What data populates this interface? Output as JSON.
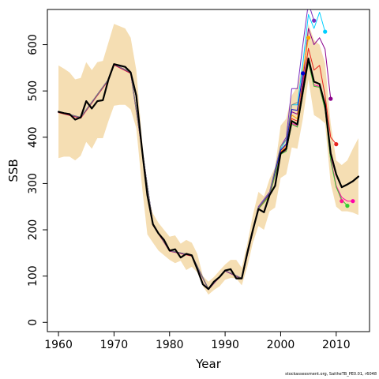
{
  "chart_data": {
    "type": "line",
    "xlabel": "Year",
    "ylabel": "SSB",
    "xlim": [
      1958,
      2016
    ],
    "ylim": [
      -20,
      676
    ],
    "x_ticks": [
      1960,
      1970,
      1980,
      1990,
      2000,
      2010
    ],
    "y_ticks": [
      0,
      100,
      200,
      300,
      400,
      500,
      600
    ],
    "band": {
      "name": "",
      "color": "#f5deb3",
      "x": [
        1960,
        1961,
        1962,
        1963,
        1964,
        1965,
        1966,
        1967,
        1968,
        1969,
        1970,
        1971,
        1972,
        1973,
        1974,
        1975,
        1976,
        1977,
        1978,
        1979,
        1980,
        1981,
        1982,
        1983,
        1984,
        1985,
        1986,
        1987,
        1988,
        1989,
        1990,
        1991,
        1992,
        1993,
        1994,
        1995,
        1996,
        1997,
        1998,
        1999,
        2000,
        2001,
        2002,
        2003,
        2004,
        2005,
        2006,
        2007,
        2008,
        2009,
        2010,
        2011,
        2012,
        2013,
        2014
      ],
      "upper": [
        555,
        548,
        540,
        525,
        528,
        562,
        545,
        562,
        565,
        605,
        645,
        640,
        635,
        615,
        545,
        400,
        280,
        235,
        215,
        200,
        185,
        188,
        170,
        178,
        172,
        148,
        100,
        88,
        98,
        112,
        125,
        135,
        135,
        118,
        170,
        232,
        282,
        272,
        310,
        335,
        425,
        440,
        490,
        510,
        560,
        645,
        610,
        600,
        560,
        430,
        350,
        340,
        350,
        375,
        398
      ],
      "lower": [
        355,
        358,
        358,
        350,
        360,
        390,
        375,
        398,
        398,
        435,
        468,
        470,
        470,
        460,
        420,
        298,
        190,
        172,
        155,
        145,
        135,
        128,
        133,
        113,
        120,
        108,
        78,
        60,
        70,
        78,
        92,
        96,
        95,
        80,
        120,
        172,
        208,
        200,
        240,
        248,
        312,
        320,
        378,
        375,
        440,
        525,
        448,
        440,
        430,
        300,
        250,
        240,
        240,
        237,
        232
      ]
    },
    "series": [
      {
        "name": "",
        "color": "#000000",
        "width": 2.2,
        "x": [
          1960,
          1961,
          1962,
          1963,
          1964,
          1965,
          1966,
          1967,
          1968,
          1969,
          1970,
          1971,
          1972,
          1973,
          1974,
          1975,
          1976,
          1977,
          1978,
          1979,
          1980,
          1981,
          1982,
          1983,
          1984,
          1985,
          1986,
          1987,
          1988,
          1989,
          1990,
          1991,
          1992,
          1993,
          1994,
          1995,
          1996,
          1997,
          1998,
          1999,
          2000,
          2001,
          2002,
          2003,
          2004,
          2005,
          2006,
          2007,
          2008,
          2009,
          2010,
          2011,
          2012,
          2013,
          2014
        ],
        "y": [
          455,
          452,
          450,
          438,
          443,
          478,
          462,
          478,
          480,
          525,
          558,
          555,
          552,
          540,
          490,
          378,
          275,
          212,
          192,
          178,
          155,
          158,
          140,
          148,
          145,
          115,
          82,
          72,
          88,
          98,
          112,
          115,
          95,
          95,
          150,
          200,
          245,
          238,
          275,
          295,
          365,
          375,
          435,
          428,
          500,
          570,
          520,
          515,
          470,
          365,
          320,
          292,
          298,
          305,
          315
        ]
      },
      {
        "name": "",
        "color": "#e8231e",
        "width": 1,
        "x": [
          1960,
          1964,
          1969,
          1970,
          1973,
          1975,
          1977,
          1980,
          1984,
          1987,
          1990,
          1993,
          1996,
          1998,
          2000,
          2001,
          2002,
          2003,
          2004,
          2005,
          2006,
          2007,
          2008,
          2009,
          2010
        ],
        "y": [
          453,
          441,
          523,
          556,
          538,
          376,
          210,
          154,
          143,
          71,
          111,
          94,
          247,
          277,
          368,
          378,
          440,
          435,
          510,
          592,
          545,
          555,
          490,
          400,
          385
        ],
        "end_marker": true
      },
      {
        "name": "",
        "color": "#00cfff",
        "width": 1,
        "x": [
          1960,
          1964,
          1969,
          1970,
          1973,
          1975,
          1977,
          1980,
          1984,
          1987,
          1990,
          1993,
          1996,
          1998,
          2000,
          2001,
          2002,
          2003,
          2004,
          2005,
          2006,
          2007,
          2008
        ],
        "y": [
          455,
          443,
          525,
          558,
          540,
          378,
          212,
          155,
          145,
          72,
          112,
          95,
          249,
          280,
          375,
          395,
          470,
          470,
          560,
          665,
          635,
          670,
          628
        ],
        "end_marker": true
      },
      {
        "name": "",
        "color": "#8b008b",
        "width": 1,
        "x": [
          1960,
          1964,
          1969,
          1970,
          1973,
          1975,
          1977,
          1980,
          1984,
          1987,
          1990,
          1993,
          1996,
          1998,
          2000,
          2001,
          2002,
          2003,
          2004,
          2005,
          2006,
          2007,
          2008,
          2009
        ],
        "y": [
          454,
          442,
          524,
          557,
          539,
          377,
          211,
          154,
          144,
          71,
          111,
          94,
          248,
          278,
          372,
          385,
          455,
          450,
          520,
          635,
          600,
          615,
          590,
          483
        ],
        "end_marker": true
      },
      {
        "name": "",
        "color": "#7b2fbe",
        "width": 1,
        "x": [
          1960,
          1964,
          1969,
          1970,
          1973,
          1975,
          1977,
          1980,
          1984,
          1987,
          1990,
          1993,
          1996,
          1998,
          2000,
          2001,
          2002,
          2003,
          2004,
          2005,
          2006
        ],
        "y": [
          455,
          443,
          525,
          558,
          540,
          378,
          212,
          155,
          145,
          72,
          112,
          95,
          250,
          282,
          380,
          400,
          505,
          505,
          600,
          690,
          652
        ],
        "end_marker": true
      },
      {
        "name": "",
        "color": "#ff00aa",
        "width": 1,
        "x": [
          1960,
          1964,
          1969,
          1970,
          1973,
          1975,
          1977,
          1980,
          1984,
          1987,
          1990,
          1993,
          1996,
          1998,
          2000,
          2001,
          2002,
          2003,
          2004,
          2005,
          2006,
          2007,
          2008,
          2009,
          2010,
          2011,
          2012,
          2013
        ],
        "y": [
          455,
          443,
          525,
          558,
          540,
          378,
          212,
          155,
          145,
          72,
          112,
          95,
          246,
          274,
          364,
          372,
          430,
          425,
          495,
          565,
          513,
          510,
          462,
          355,
          295,
          270,
          262,
          262
        ],
        "end_marker": true
      },
      {
        "name": "",
        "color": "#ff1493",
        "width": 1,
        "x": [
          1960,
          1964,
          1969,
          1970,
          1973,
          1975,
          1977,
          1980,
          1984,
          1987,
          1990,
          1993,
          1996,
          1998,
          2000,
          2001,
          2002,
          2003,
          2004,
          2005,
          2006,
          2007,
          2008,
          2009,
          2010,
          2011
        ],
        "y": [
          455,
          443,
          525,
          558,
          540,
          378,
          212,
          155,
          145,
          72,
          112,
          95,
          245,
          273,
          363,
          370,
          428,
          422,
          492,
          562,
          510,
          508,
          460,
          350,
          295,
          262
        ],
        "end_marker": true
      },
      {
        "name": "",
        "color": "#32cd32",
        "width": 1,
        "x": [
          1960,
          1964,
          1969,
          1970,
          1973,
          1975,
          1977,
          1980,
          1984,
          1987,
          1990,
          1993,
          1996,
          1998,
          2000,
          2001,
          2002,
          2003,
          2004,
          2005,
          2006,
          2007,
          2008,
          2009,
          2010,
          2011,
          2012
        ],
        "y": [
          455,
          443,
          525,
          558,
          540,
          378,
          212,
          155,
          145,
          72,
          112,
          95,
          245,
          273,
          363,
          370,
          428,
          422,
          492,
          562,
          510,
          508,
          460,
          350,
          292,
          265,
          252
        ],
        "end_marker": true
      },
      {
        "name": "",
        "color": "#ffa500",
        "width": 1,
        "x": [
          1960,
          1964,
          1969,
          1970,
          1973,
          1975,
          1977,
          1980,
          1984,
          1987,
          1990,
          1993,
          1996,
          1998,
          2000,
          2001,
          2002,
          2003,
          2004,
          2005
        ],
        "y": [
          455,
          443,
          525,
          558,
          540,
          378,
          212,
          155,
          145,
          72,
          112,
          95,
          246,
          276,
          370,
          382,
          448,
          440,
          540,
          615
        ],
        "end_marker": true
      },
      {
        "name": "",
        "color": "#0000cd",
        "width": 1,
        "x": [
          1960,
          1964,
          1969,
          1970,
          1973,
          1975,
          1977,
          1980,
          1984,
          1987,
          1990,
          1993,
          1996,
          1998,
          2000,
          2001,
          2002,
          2003,
          2004
        ],
        "y": [
          455,
          443,
          525,
          558,
          540,
          378,
          212,
          155,
          145,
          72,
          112,
          95,
          247,
          278,
          372,
          385,
          460,
          458,
          538
        ],
        "end_marker": true
      },
      {
        "name": "",
        "color": "#808080",
        "width": 1,
        "x": [
          1960,
          1964,
          1969,
          1970,
          1973,
          1975,
          1977,
          1980,
          1984,
          1987,
          1990,
          1993,
          1996,
          1998,
          2000,
          2001,
          2002,
          2003
        ],
        "y": [
          455,
          443,
          525,
          558,
          540,
          378,
          212,
          155,
          145,
          72,
          112,
          95,
          248,
          280,
          380,
          395,
          470,
          475
        ],
        "end_marker": false
      }
    ],
    "grid": false,
    "legend": "none"
  },
  "footer": {
    "text": "stockassessment.org, SaitheTB_PE0.01, r6048"
  }
}
